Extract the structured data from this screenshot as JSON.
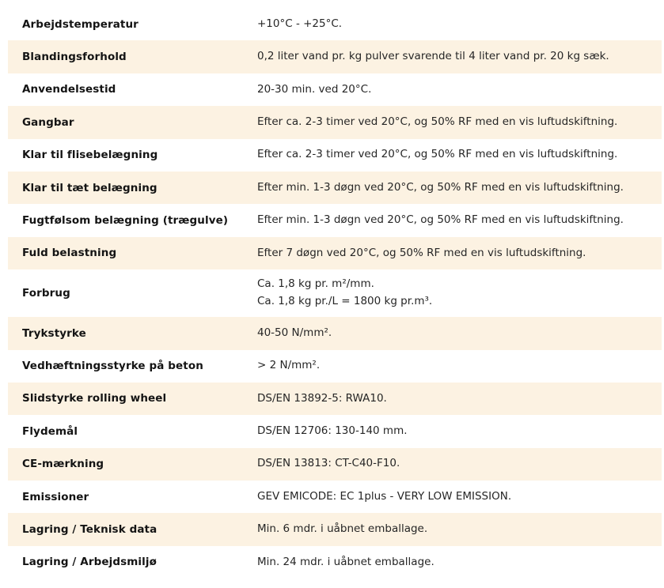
{
  "colors": {
    "background": "#ffffff",
    "stripe": "#fcf2e2",
    "label_text": "#141414",
    "value_text": "#262626"
  },
  "table": {
    "rows": [
      {
        "label": "Arbejdstemperatur",
        "values": [
          "+10°C - +25°C."
        ]
      },
      {
        "label": "Blandingsforhold",
        "values": [
          "0,2 liter vand pr. kg pulver svarende til 4 liter vand pr. 20 kg sæk."
        ]
      },
      {
        "label": "Anvendelsestid",
        "values": [
          "20-30 min. ved 20°C."
        ]
      },
      {
        "label": "Gangbar",
        "values": [
          "Efter ca. 2-3 timer ved 20°C, og 50% RF med en vis luftudskiftning."
        ]
      },
      {
        "label": "Klar til flisebelægning",
        "values": [
          "Efter ca. 2-3 timer ved 20°C, og 50% RF med en vis luftudskiftning."
        ]
      },
      {
        "label": "Klar til tæt belægning",
        "values": [
          "Efter min. 1-3 døgn ved 20°C, og 50% RF med en vis luftudskiftning."
        ]
      },
      {
        "label": "Fugtfølsom belægning (trægulve)",
        "values": [
          "Efter min. 1-3 døgn ved 20°C, og 50% RF med en vis luftudskiftning."
        ]
      },
      {
        "label": "Fuld belastning",
        "values": [
          "Efter 7 døgn ved 20°C, og 50% RF med en vis luftudskiftning."
        ]
      },
      {
        "label": "Forbrug",
        "values": [
          "Ca. 1,8 kg pr. m²/mm.",
          "Ca. 1,8 kg pr./L = 1800 kg pr.m³."
        ]
      },
      {
        "label": "Trykstyrke",
        "values": [
          "40-50 N/mm²."
        ]
      },
      {
        "label": "Vedhæftningsstyrke på beton",
        "values": [
          "> 2 N/mm²."
        ]
      },
      {
        "label": "Slidstyrke rolling wheel",
        "values": [
          "DS/EN 13892-5: RWA10."
        ]
      },
      {
        "label": "Flydemål",
        "values": [
          "DS/EN 12706: 130-140 mm."
        ]
      },
      {
        "label": "CE-mærkning",
        "values": [
          "DS/EN 13813: CT-C40-F10."
        ]
      },
      {
        "label": "Emissioner",
        "values": [
          "GEV EMICODE: EC 1plus - VERY LOW EMISSION."
        ]
      },
      {
        "label": "Lagring / Teknisk data",
        "values": [
          "Min. 6 mdr. i uåbnet emballage."
        ]
      },
      {
        "label": "Lagring / Arbejdsmiljø",
        "values": [
          "Min. 24 mdr. i uåbnet emballage."
        ]
      }
    ]
  }
}
